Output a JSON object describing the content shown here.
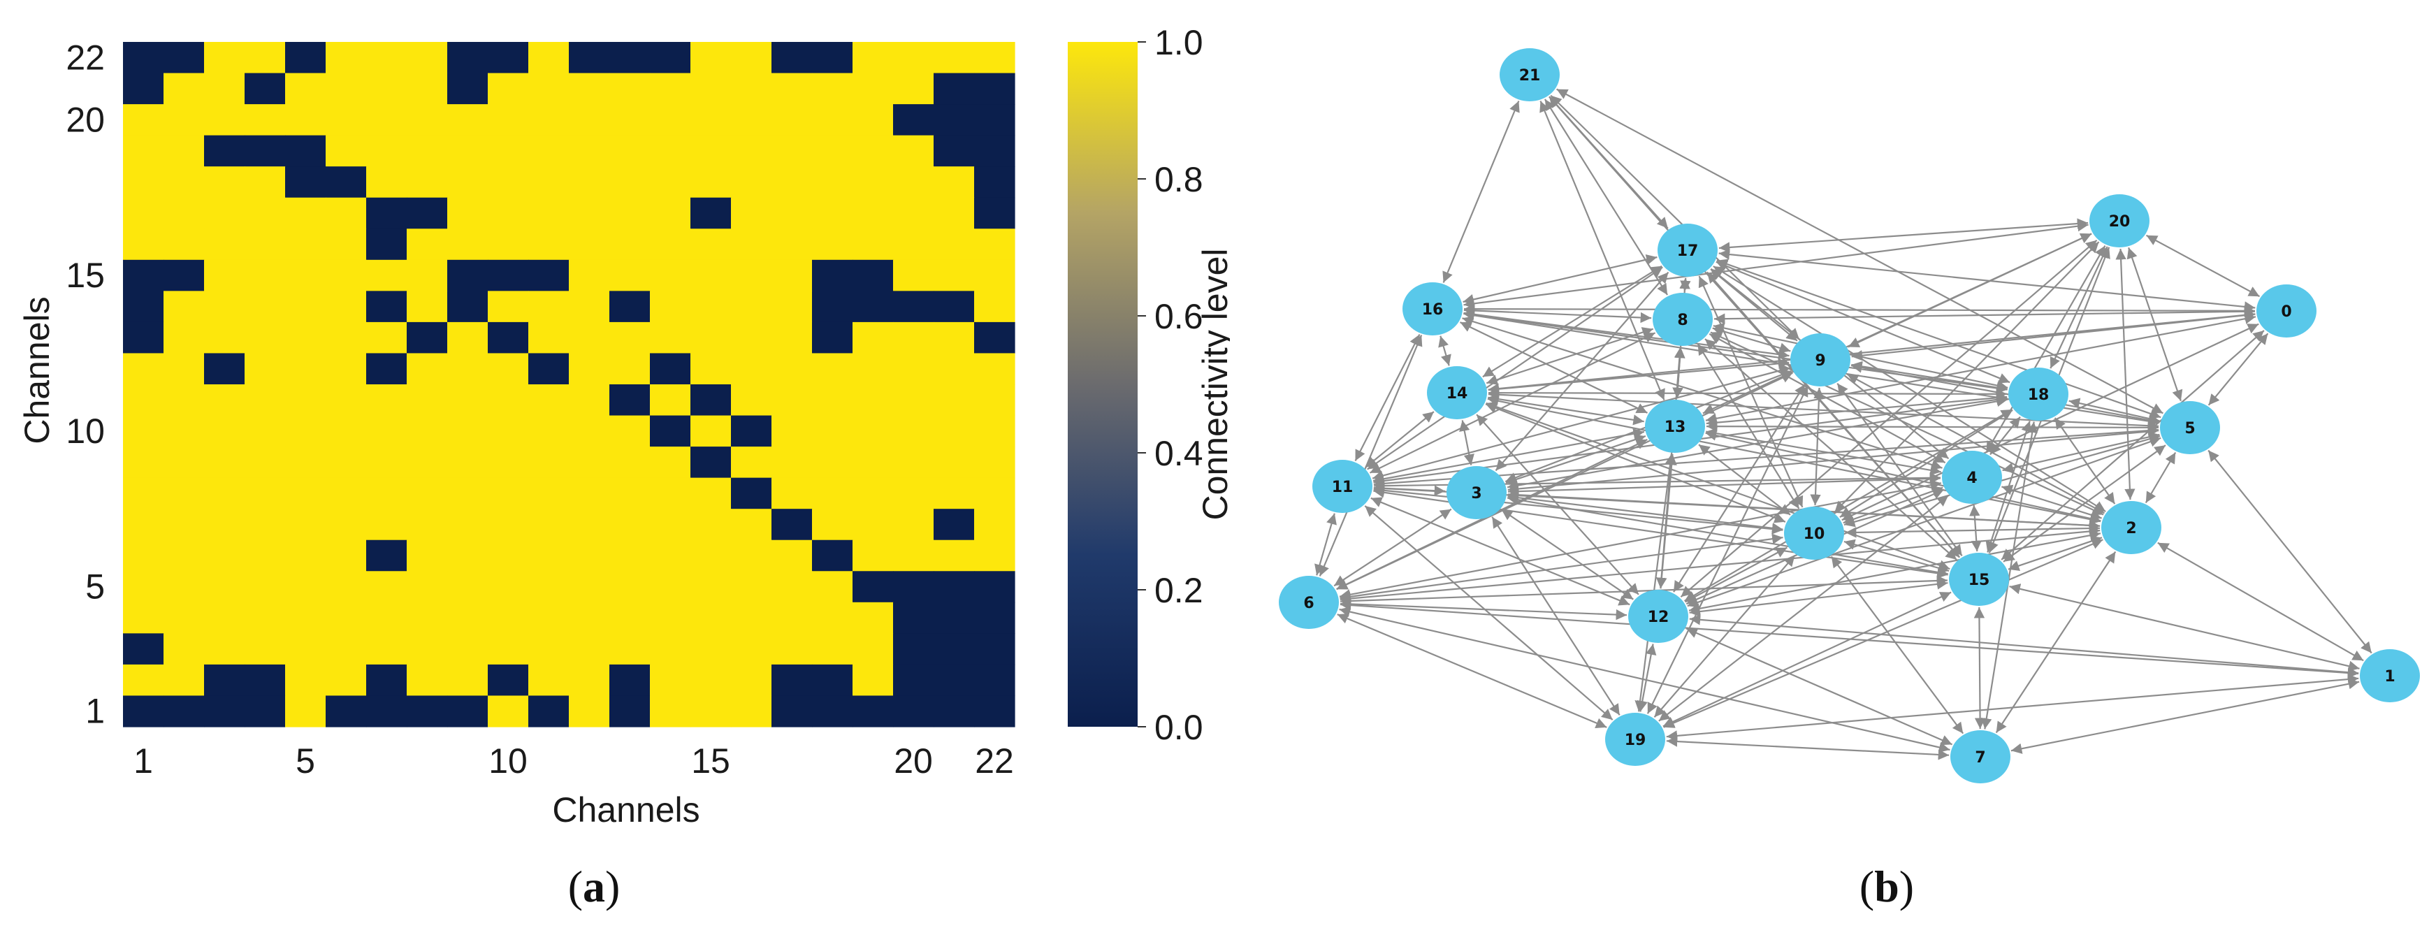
{
  "colors": {
    "low": "#0b1f4d",
    "high": "#fde70c",
    "node": "#59c8ea",
    "edge": "#8c8c8c"
  },
  "panel_a": {
    "caption_letter": "a",
    "colorbar_label": "Connectivity level",
    "colorbar_ticks": [
      "0.0",
      "0.2",
      "0.4",
      "0.6",
      "0.8",
      "1.0"
    ]
  },
  "panel_b": {
    "caption_letter": "b"
  },
  "chart_data": [
    {
      "type": "heatmap",
      "xlabel": "Channels",
      "ylabel": "Channels",
      "x_tick_labels": [
        "1",
        "5",
        "10",
        "15",
        "20",
        "22"
      ],
      "x_tick_values": [
        1,
        5,
        10,
        15,
        20,
        22
      ],
      "y_tick_labels": [
        "1",
        "5",
        "10",
        "15",
        "20",
        "22"
      ],
      "y_tick_values": [
        1,
        5,
        10,
        15,
        20,
        22
      ],
      "value_range": [
        0,
        1
      ],
      "colorbar_label": "Connectivity level",
      "matrix_rows_top_to_bottom": [
        "0011011100100011001111",
        "0110111101111111111100",
        "1111111111111111111000",
        "1100011111111111111100",
        "1111001111111111111110",
        "1111110011111101111110",
        "1111110111111111111111",
        "0011111100011111100111",
        "0111110101110111100001",
        "0111111010111111101110",
        "1101110111011011111111",
        "1111111111110101111111",
        "1111111111111010111111",
        "1111111111111101111111",
        "1111111111111110111111",
        "1111111111111111011101",
        "1111110111111111101111",
        "1111111111111111110000",
        "1111111111111111111000",
        "0111111111111111111000",
        "1100110110110111001000",
        "0000100001010111000000"
      ]
    },
    {
      "type": "network_graph",
      "nodes": [
        "0",
        "1",
        "2",
        "3",
        "4",
        "5",
        "6",
        "7",
        "8",
        "9",
        "10",
        "11",
        "12",
        "13",
        "14",
        "15",
        "16",
        "17",
        "18",
        "19",
        "20",
        "21"
      ],
      "edges": [
        [
          "21",
          "16"
        ],
        [
          "21",
          "17"
        ],
        [
          "21",
          "13"
        ],
        [
          "21",
          "15"
        ],
        [
          "21",
          "5"
        ],
        [
          "21",
          "9"
        ],
        [
          "21",
          "8"
        ],
        [
          "20",
          "17"
        ],
        [
          "20",
          "9"
        ],
        [
          "20",
          "4"
        ],
        [
          "20",
          "2"
        ],
        [
          "20",
          "5"
        ],
        [
          "20",
          "0"
        ],
        [
          "20",
          "13"
        ],
        [
          "20",
          "15"
        ],
        [
          "20",
          "18"
        ],
        [
          "20",
          "10"
        ],
        [
          "20",
          "12"
        ],
        [
          "20",
          "16"
        ],
        [
          "0",
          "16"
        ],
        [
          "0",
          "8"
        ],
        [
          "0",
          "9"
        ],
        [
          "0",
          "13"
        ],
        [
          "0",
          "10"
        ],
        [
          "0",
          "5"
        ],
        [
          "0",
          "17"
        ],
        [
          "0",
          "15"
        ],
        [
          "0",
          "14"
        ],
        [
          "17",
          "16"
        ],
        [
          "17",
          "14"
        ],
        [
          "17",
          "13"
        ],
        [
          "17",
          "3"
        ],
        [
          "17",
          "11"
        ],
        [
          "17",
          "18"
        ],
        [
          "17",
          "5"
        ],
        [
          "17",
          "2"
        ],
        [
          "17",
          "4"
        ],
        [
          "17",
          "10"
        ],
        [
          "17",
          "15"
        ],
        [
          "17",
          "9"
        ],
        [
          "17",
          "8"
        ],
        [
          "16",
          "8"
        ],
        [
          "16",
          "9"
        ],
        [
          "16",
          "13"
        ],
        [
          "16",
          "18"
        ],
        [
          "16",
          "5"
        ],
        [
          "16",
          "4"
        ],
        [
          "16",
          "11"
        ],
        [
          "16",
          "14"
        ],
        [
          "16",
          "6"
        ],
        [
          "8",
          "9"
        ],
        [
          "8",
          "13"
        ],
        [
          "8",
          "14"
        ],
        [
          "8",
          "11"
        ],
        [
          "8",
          "2"
        ],
        [
          "8",
          "4"
        ],
        [
          "8",
          "15"
        ],
        [
          "8",
          "10"
        ],
        [
          "8",
          "12"
        ],
        [
          "8",
          "18"
        ],
        [
          "9",
          "18"
        ],
        [
          "9",
          "14"
        ],
        [
          "9",
          "11"
        ],
        [
          "9",
          "3"
        ],
        [
          "9",
          "2"
        ],
        [
          "9",
          "15"
        ],
        [
          "9",
          "12"
        ],
        [
          "9",
          "19"
        ],
        [
          "9",
          "10"
        ],
        [
          "9",
          "5"
        ],
        [
          "9",
          "6"
        ],
        [
          "14",
          "13"
        ],
        [
          "14",
          "3"
        ],
        [
          "14",
          "11"
        ],
        [
          "14",
          "12"
        ],
        [
          "14",
          "10"
        ],
        [
          "14",
          "15"
        ],
        [
          "14",
          "18"
        ],
        [
          "14",
          "5"
        ],
        [
          "14",
          "2"
        ],
        [
          "18",
          "13"
        ],
        [
          "18",
          "4"
        ],
        [
          "18",
          "5"
        ],
        [
          "18",
          "2"
        ],
        [
          "18",
          "15"
        ],
        [
          "18",
          "10"
        ],
        [
          "18",
          "12"
        ],
        [
          "18",
          "11"
        ],
        [
          "18",
          "3"
        ],
        [
          "18",
          "7"
        ],
        [
          "13",
          "11"
        ],
        [
          "13",
          "3"
        ],
        [
          "13",
          "12"
        ],
        [
          "13",
          "4"
        ],
        [
          "13",
          "10"
        ],
        [
          "13",
          "2"
        ],
        [
          "13",
          "6"
        ],
        [
          "13",
          "5"
        ],
        [
          "13",
          "19"
        ],
        [
          "5",
          "4"
        ],
        [
          "5",
          "2"
        ],
        [
          "5",
          "10"
        ],
        [
          "5",
          "15"
        ],
        [
          "5",
          "1"
        ],
        [
          "5",
          "12"
        ],
        [
          "5",
          "3"
        ],
        [
          "5",
          "11"
        ],
        [
          "11",
          "3"
        ],
        [
          "11",
          "12"
        ],
        [
          "11",
          "6"
        ],
        [
          "11",
          "10"
        ],
        [
          "11",
          "15"
        ],
        [
          "11",
          "19"
        ],
        [
          "11",
          "2"
        ],
        [
          "11",
          "4"
        ],
        [
          "3",
          "12"
        ],
        [
          "3",
          "10"
        ],
        [
          "3",
          "4"
        ],
        [
          "3",
          "19"
        ],
        [
          "3",
          "6"
        ],
        [
          "3",
          "15"
        ],
        [
          "3",
          "2"
        ],
        [
          "4",
          "10"
        ],
        [
          "4",
          "2"
        ],
        [
          "4",
          "15"
        ],
        [
          "4",
          "12"
        ],
        [
          "4",
          "6"
        ],
        [
          "4",
          "19"
        ],
        [
          "10",
          "12"
        ],
        [
          "10",
          "15"
        ],
        [
          "10",
          "2"
        ],
        [
          "10",
          "19"
        ],
        [
          "10",
          "7"
        ],
        [
          "10",
          "6"
        ],
        [
          "2",
          "15"
        ],
        [
          "2",
          "1"
        ],
        [
          "2",
          "7"
        ],
        [
          "2",
          "12"
        ],
        [
          "2",
          "6"
        ],
        [
          "2",
          "19"
        ],
        [
          "15",
          "12"
        ],
        [
          "15",
          "7"
        ],
        [
          "15",
          "1"
        ],
        [
          "15",
          "19"
        ],
        [
          "15",
          "6"
        ],
        [
          "12",
          "19"
        ],
        [
          "12",
          "6"
        ],
        [
          "12",
          "7"
        ],
        [
          "12",
          "1"
        ],
        [
          "6",
          "19"
        ],
        [
          "6",
          "1"
        ],
        [
          "6",
          "7"
        ],
        [
          "19",
          "7"
        ],
        [
          "19",
          "1"
        ],
        [
          "7",
          "1"
        ]
      ]
    }
  ]
}
